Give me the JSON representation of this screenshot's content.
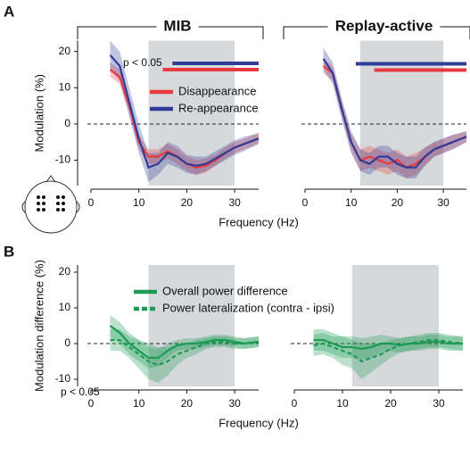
{
  "chart_data": [
    {
      "type": "line",
      "panel_label": "A",
      "title": "MIB",
      "ylabel": "Modulation (%)",
      "xlabel": "Frequency (Hz)",
      "annotation": "p < 0.05",
      "legend": true,
      "xlim": [
        0,
        35
      ],
      "ylim": [
        -17,
        23
      ],
      "xticks": [
        0,
        10,
        20,
        30
      ],
      "yticks": [
        -10,
        0,
        10,
        20
      ],
      "highlight": [
        12,
        30
      ],
      "x": [
        4,
        6,
        8,
        10,
        12,
        14,
        16,
        18,
        20,
        22,
        24,
        26,
        28,
        30,
        32,
        35
      ],
      "series": [
        {
          "name": "Disappearance",
          "color": "#e8393f",
          "sig": [
            15,
            35
          ],
          "values": [
            15,
            13,
            5,
            -5,
            -9,
            -9,
            -7.5,
            -9,
            -11,
            -12,
            -11.5,
            -10,
            -8,
            -6.5,
            -5.5,
            -4
          ],
          "errors": [
            2,
            2,
            2,
            2,
            2,
            2,
            2,
            2,
            2,
            2,
            2,
            1.5,
            1.5,
            1.5,
            1.5,
            1.5
          ]
        },
        {
          "name": "Re-appearance",
          "color": "#2e3d96",
          "sig": [
            17,
            35
          ],
          "values": [
            19,
            16,
            6,
            -4,
            -12,
            -11,
            -8,
            -9,
            -11,
            -11.5,
            -11,
            -9.5,
            -8,
            -6.5,
            -5.5,
            -4
          ],
          "errors": [
            4,
            4,
            4,
            4,
            4,
            3,
            3,
            3,
            2.5,
            2.5,
            2,
            2,
            2,
            2,
            2,
            1.5
          ]
        }
      ]
    },
    {
      "type": "line",
      "title": "Replay-active",
      "legend": false,
      "xlim": [
        0,
        35
      ],
      "ylim": [
        -17,
        23
      ],
      "xticks": [
        0,
        10,
        20,
        30
      ],
      "highlight": [
        12,
        30
      ],
      "x": [
        4,
        6,
        8,
        10,
        12,
        14,
        16,
        18,
        20,
        22,
        24,
        26,
        28,
        30,
        32,
        35
      ],
      "series": [
        {
          "color": "#e8393f",
          "sig": [
            15,
            35
          ],
          "values": [
            16,
            14,
            4,
            -5,
            -10,
            -9,
            -10,
            -11,
            -10,
            -12,
            -11,
            -9,
            -7,
            -6,
            -5,
            -3.5
          ],
          "errors": [
            2,
            2,
            2,
            2.5,
            3,
            3,
            3,
            3,
            3,
            3,
            3,
            2.5,
            2,
            2,
            2,
            1.5
          ]
        },
        {
          "color": "#2e3d96",
          "sig": [
            11,
            35
          ],
          "values": [
            18,
            14,
            4,
            -5,
            -10,
            -11,
            -9,
            -9,
            -11,
            -12,
            -12,
            -9,
            -7,
            -6,
            -5,
            -3.5
          ],
          "errors": [
            3,
            3,
            3,
            3,
            3,
            3,
            3,
            3,
            3,
            3,
            3,
            2.5,
            2,
            2,
            2,
            1.5
          ]
        }
      ]
    },
    {
      "type": "line",
      "panel_label": "B",
      "ylabel": "Modulation difference (%)",
      "xlabel": "Frequency (Hz)",
      "annotation": "p < 0.05",
      "legend": true,
      "xlim": [
        0,
        35
      ],
      "ylim": [
        -12,
        22
      ],
      "xticks": [
        0,
        10,
        20,
        30
      ],
      "yticks": [
        -10,
        0,
        10,
        20
      ],
      "highlight": [
        12,
        30
      ],
      "x": [
        4,
        6,
        8,
        10,
        12,
        14,
        16,
        18,
        20,
        22,
        24,
        26,
        28,
        30,
        32,
        35
      ],
      "series": [
        {
          "name": "Overall power difference",
          "color": "#1e9a55",
          "dash": false,
          "values": [
            5,
            3,
            0,
            -2,
            -4,
            -4,
            -2,
            -0.5,
            0,
            0,
            0.5,
            1,
            1,
            0.5,
            0,
            0.5
          ],
          "errors": [
            3,
            3,
            3,
            3,
            3,
            2.5,
            2,
            1.5,
            1.5,
            1.5,
            1.5,
            1.5,
            1.5,
            1.5,
            1.5,
            1.5
          ]
        },
        {
          "name": "Power lateralization (contra - ipsi)",
          "color": "#1e9a55",
          "dash": true,
          "values": [
            1,
            1,
            -1,
            -3,
            -5,
            -6,
            -5,
            -3,
            -2,
            -1,
            0,
            0.5,
            0.5,
            0,
            0,
            0.5
          ],
          "errors": [
            3,
            3,
            3,
            4,
            5,
            5,
            4,
            3,
            2,
            2,
            1.5,
            1.5,
            1.5,
            1.5,
            1.5,
            1.5
          ]
        }
      ]
    },
    {
      "type": "line",
      "legend": false,
      "xlim": [
        0,
        35
      ],
      "ylim": [
        -12,
        22
      ],
      "xticks": [
        0,
        10,
        20,
        30
      ],
      "highlight": [
        12,
        30
      ],
      "x": [
        4,
        6,
        8,
        10,
        12,
        14,
        16,
        18,
        20,
        22,
        24,
        26,
        28,
        30,
        32,
        35
      ],
      "series": [
        {
          "color": "#1e9a55",
          "dash": false,
          "values": [
            1,
            1,
            0,
            -1,
            -1,
            -1.5,
            -1,
            0,
            0,
            -0.5,
            0,
            0,
            0.5,
            0.5,
            0,
            0
          ],
          "errors": [
            3,
            3,
            3,
            3,
            3,
            3,
            3,
            2.5,
            2,
            2,
            2,
            2,
            2,
            2,
            2,
            2
          ]
        },
        {
          "color": "#1e9a55",
          "dash": true,
          "values": [
            -0.5,
            0,
            -1,
            -2,
            -3,
            -5,
            -4,
            -3,
            -1.5,
            -0.5,
            0,
            0.5,
            1,
            1,
            0.5,
            0
          ],
          "errors": [
            3,
            3,
            3,
            4,
            4,
            5,
            4,
            3,
            2.5,
            2,
            2,
            2,
            2,
            2,
            2,
            2
          ]
        }
      ]
    }
  ]
}
